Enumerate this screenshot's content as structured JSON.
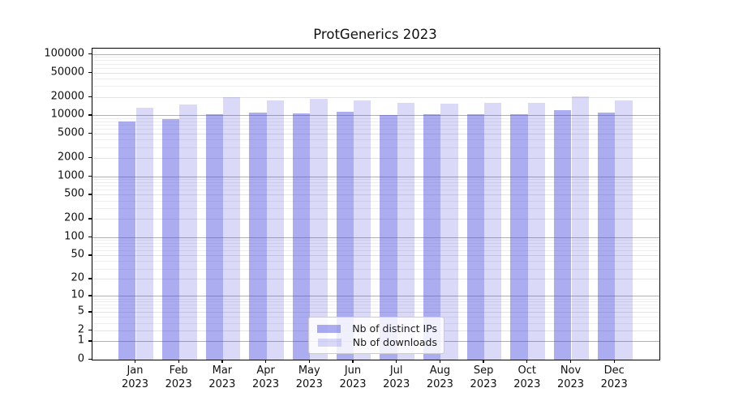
{
  "title": "ProtGenerics 2023",
  "chart_data": {
    "type": "bar",
    "title": "ProtGenerics 2023",
    "categories": [
      "Jan",
      "Feb",
      "Mar",
      "Apr",
      "May",
      "Jun",
      "Jul",
      "Aug",
      "Sep",
      "Oct",
      "Nov",
      "Dec"
    ],
    "category_year": "2023",
    "series": [
      {
        "name": "Nb of distinct IPs",
        "color": "#acacf0",
        "fill_rgba": "rgba(72,72,222,0.45)",
        "values": [
          7900,
          8700,
          10400,
          11200,
          10800,
          11600,
          10000,
          10400,
          10300,
          10400,
          12200,
          11000
        ]
      },
      {
        "name": "Nb of downloads",
        "color": "#dadaf8",
        "fill_rgba": "rgba(72,72,222,0.20)",
        "values": [
          13300,
          15100,
          19600,
          17800,
          18600,
          17500,
          16100,
          15600,
          15900,
          16200,
          20200,
          17500
        ]
      }
    ],
    "yscale": "log1p",
    "yticks": [
      0,
      1,
      2,
      5,
      10,
      20,
      50,
      100,
      200,
      500,
      1000,
      2000,
      5000,
      10000,
      20000,
      50000,
      100000
    ],
    "ylim": [
      0,
      120000
    ],
    "xlabel": "",
    "ylabel": "",
    "grid": "on",
    "legend_position": "lower center",
    "grid_colors": {
      "decade": "#b0b0b0",
      "labeled": "#e2e2e2",
      "minor": "#eeeeee"
    }
  }
}
